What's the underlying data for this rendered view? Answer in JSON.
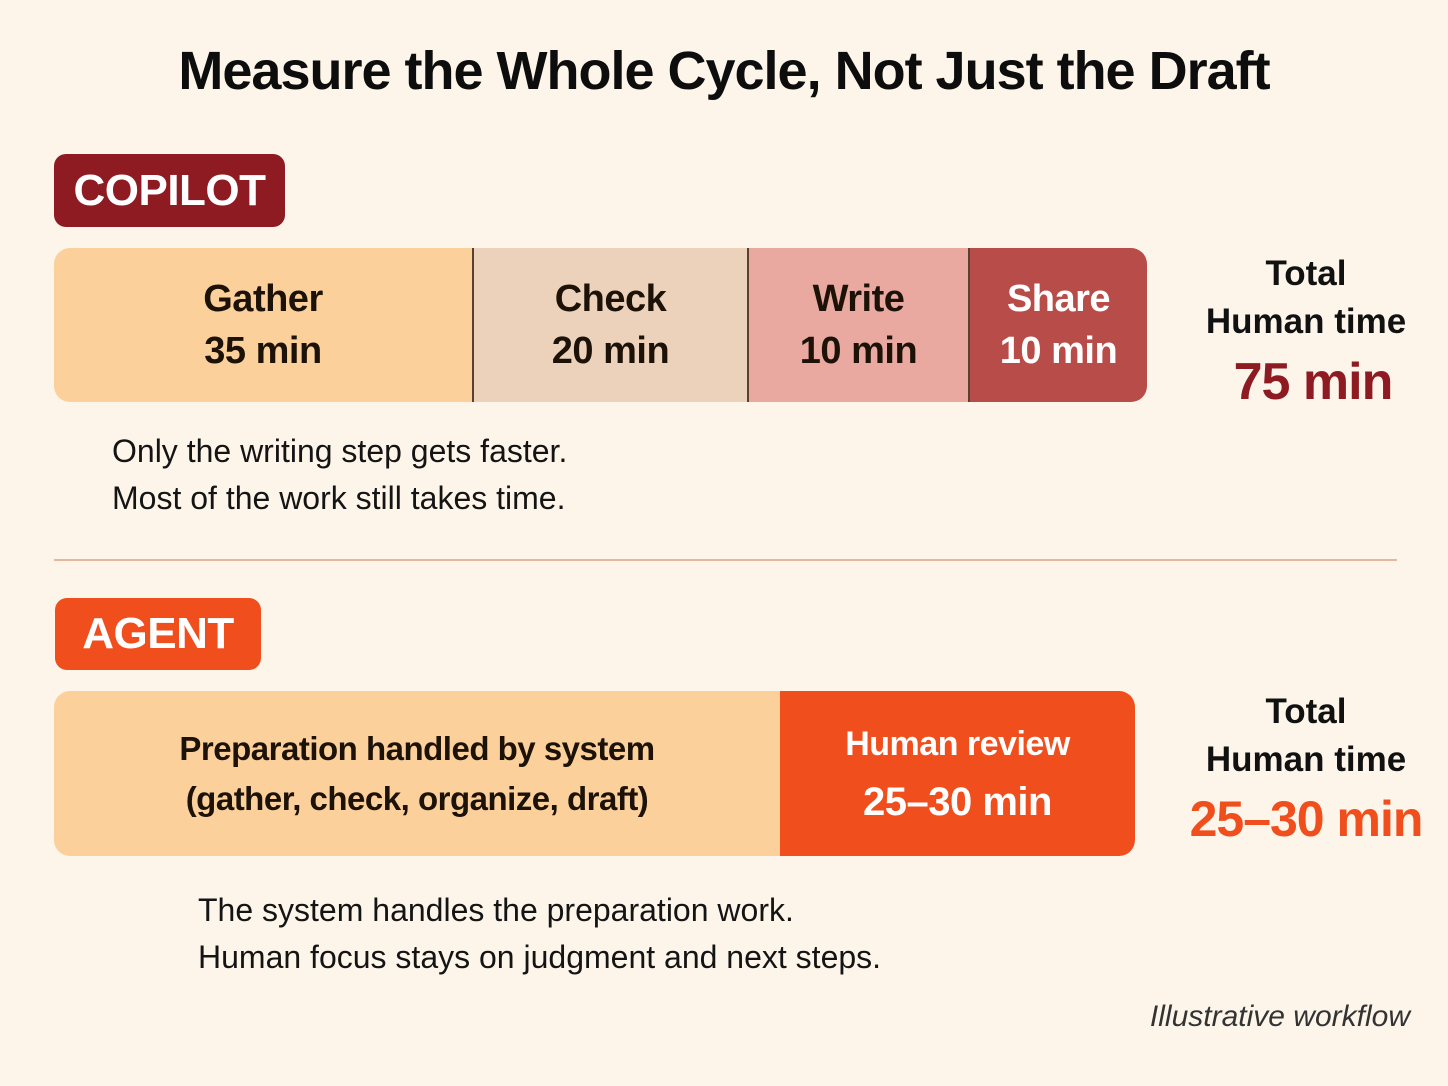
{
  "title": "Measure the Whole Cycle, Not Just the Draft",
  "colors": {
    "background": "#fdf5ea",
    "copilot_accent": "#8e1a22",
    "agent_accent": "#f04e1d",
    "gather": "#fcd09b",
    "check": "#ecd2bb",
    "write": "#e9a9a0",
    "share": "#b84c48"
  },
  "copilot": {
    "label": "COPILOT",
    "steps": [
      {
        "name": "Gather",
        "time": "35 min",
        "minutes": 35
      },
      {
        "name": "Check",
        "time": "20 min",
        "minutes": 20
      },
      {
        "name": "Write",
        "time": "10 min",
        "minutes": 10
      },
      {
        "name": "Share",
        "time": "10 min",
        "minutes": 10
      }
    ],
    "total_line1": "Total",
    "total_line2": "Human time",
    "total_value": "75 min",
    "note_lines": [
      "Only the writing step gets faster.",
      "Most of the work still takes time."
    ]
  },
  "agent": {
    "label": "AGENT",
    "preparation": {
      "line1": "Preparation handled by system",
      "line2": "(gather, check, organize, draft)"
    },
    "review": {
      "line1": "Human review",
      "line2": "25–30 min"
    },
    "total_line1": "Total",
    "total_line2": "Human time",
    "total_value": "25–30 min",
    "note_lines": [
      "The system handles the preparation work.",
      "Human focus stays on judgment and next steps."
    ]
  },
  "footnote": "Illustrative workflow"
}
